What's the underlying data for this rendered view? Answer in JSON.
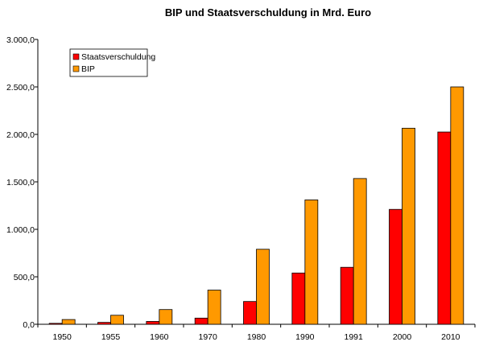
{
  "chart_data": {
    "type": "bar",
    "title": "BIP und Staatsverschuldung in Mrd. Euro",
    "xlabel": "",
    "ylabel": "",
    "categories": [
      "1950",
      "1955",
      "1960",
      "1970",
      "1980",
      "1990",
      "1991",
      "2000",
      "2010"
    ],
    "ylim": [
      0,
      3000
    ],
    "yticks": [
      0,
      500,
      1000,
      1500,
      2000,
      2500,
      3000
    ],
    "ytick_labels": [
      "0,0",
      "500,0",
      "1.000,0",
      "1.500,0",
      "2.000,0",
      "2.500,0",
      "3.000,0"
    ],
    "grid": false,
    "legend_position": "top-left",
    "series": [
      {
        "name": "Staatsverschuldung",
        "color": "#ff0000",
        "values": [
          10,
          20,
          30,
          65,
          240,
          540,
          600,
          1210,
          2025
        ]
      },
      {
        "name": "BIP",
        "color": "#ff9900",
        "values": [
          50,
          95,
          155,
          360,
          790,
          1310,
          1535,
          2065,
          2500
        ]
      }
    ]
  }
}
